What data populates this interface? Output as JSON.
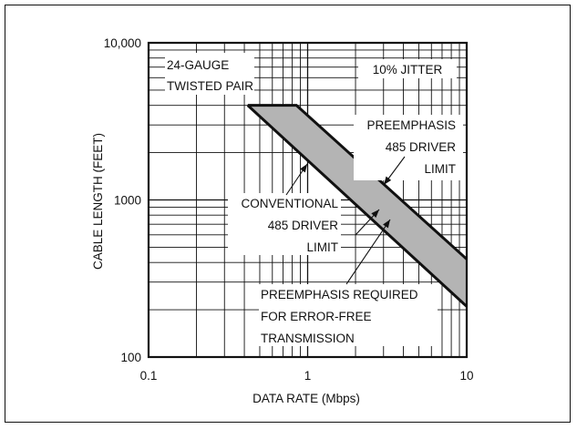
{
  "chart_data": {
    "type": "area",
    "title": "",
    "xlabel": "DATA RATE (Mbps)",
    "ylabel": "CABLE LENGTH (FEET)",
    "x_scale": "log",
    "y_scale": "log",
    "xlim": [
      0.1,
      10
    ],
    "ylim": [
      100,
      10000
    ],
    "grid": true,
    "x_ticks": [
      {
        "value": 0.1,
        "label": "0.1"
      },
      {
        "value": 1,
        "label": "1"
      },
      {
        "value": 10,
        "label": "10"
      }
    ],
    "y_ticks": [
      {
        "value": 100,
        "label": "100"
      },
      {
        "value": 1000,
        "label": "1000"
      },
      {
        "value": 10000,
        "label": "10,000"
      }
    ],
    "series": [
      {
        "name": "CONVENTIONAL 485 DRIVER LIMIT",
        "points": [
          {
            "x": 0.42,
            "y": 4000
          },
          {
            "x": 10,
            "y": 210
          }
        ]
      },
      {
        "name": "PREEMPHASIS 485 DRIVER LIMIT",
        "points": [
          {
            "x": 0.42,
            "y": 4000
          },
          {
            "x": 0.85,
            "y": 4000
          },
          {
            "x": 10,
            "y": 420
          }
        ]
      }
    ],
    "shaded_region": "PREEMPHASIS REQUIRED FOR ERROR-FREE TRANSMISSION",
    "annotations": {
      "cable": [
        "24-GAUGE",
        "TWISTED PAIR"
      ],
      "jitter": "10% JITTER",
      "preemphasis_limit": [
        "PREEMPHASIS",
        "485 DRIVER",
        "LIMIT"
      ],
      "conventional_limit": [
        "CONVENTIONAL",
        "485 DRIVER",
        "LIMIT"
      ],
      "region": [
        "PREEMPHASIS REQUIRED",
        "FOR ERROR-FREE",
        "TRANSMISSION"
      ]
    },
    "colors": {
      "region_fill": "#b4b4b4",
      "line": "#111111",
      "grid": "#111111"
    }
  }
}
